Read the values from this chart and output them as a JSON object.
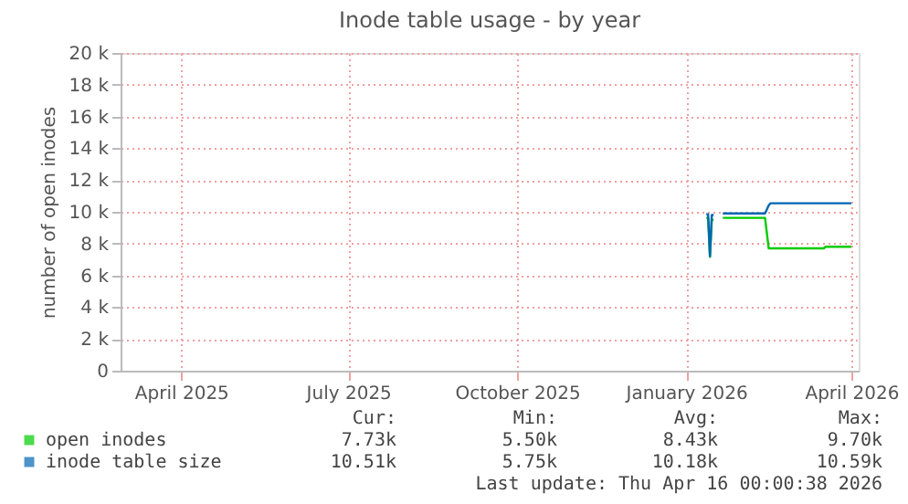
{
  "chart_data": {
    "type": "line",
    "title": "Inode table usage - by year",
    "ylabel": "number of open inodes",
    "xlim": [
      "2025-02-27",
      "2026-04-05"
    ],
    "xticks": [
      {
        "value": "2025-04-01",
        "label": "April 2025"
      },
      {
        "value": "2025-07-01",
        "label": "July 2025"
      },
      {
        "value": "2025-10-01",
        "label": "October 2025"
      },
      {
        "value": "2026-01-01",
        "label": "January 2026"
      },
      {
        "value": "2026-04-01",
        "label": "April 2026"
      }
    ],
    "ylim": [
      0,
      20000
    ],
    "yticks": [
      0,
      {
        "value": 2000,
        "label": "2 k"
      },
      {
        "value": 4000,
        "label": "4 k"
      },
      {
        "value": 6000,
        "label": "6 k"
      },
      {
        "value": 8000,
        "label": "8 k"
      },
      {
        "value": 10000,
        "label": "10 k"
      },
      {
        "value": 12000,
        "label": "12 k"
      },
      {
        "value": 14000,
        "label": "14 k"
      },
      {
        "value": 16000,
        "label": "16 k"
      },
      {
        "value": 18000,
        "label": "18 k"
      },
      {
        "value": 20000,
        "label": "20 k"
      }
    ],
    "grid": true,
    "legend": "bottom",
    "series": [
      {
        "name": "open inodes",
        "color": "#00cc00",
        "x": [
          "2026-01-12",
          "2026-01-13",
          "2026-01-14",
          "2026-01-15",
          "2026-01-16",
          "2026-01-18",
          "2026-01-21",
          "2026-02-13",
          "2026-02-15",
          "2026-03-17",
          "2026-03-18",
          "2026-04-01"
        ],
        "values": [
          9620,
          9620,
          7160,
          9500,
          9500,
          null,
          9620,
          9620,
          7700,
          7700,
          7800,
          7800
        ]
      },
      {
        "name": "inode table size",
        "color": "#0066b3",
        "x": [
          "2026-01-12",
          "2026-01-13",
          "2026-01-14",
          "2026-01-15",
          "2026-01-16",
          "2026-01-18",
          "2026-01-21",
          "2026-02-13",
          "2026-02-15",
          "2026-02-16",
          "2026-04-01"
        ],
        "values": [
          9850,
          9850,
          7200,
          9800,
          9800,
          null,
          9900,
          9900,
          10400,
          10540,
          10540
        ]
      }
    ],
    "annotations": [
      "Cur:",
      "Min:",
      "Avg:",
      "Max:",
      "7.73k",
      "5.50k",
      "8.43k",
      "9.70k",
      "10.51k",
      "5.75k",
      "10.18k",
      "10.59k",
      "Last update: Thu Apr 16 00:00:38 2026"
    ]
  }
}
